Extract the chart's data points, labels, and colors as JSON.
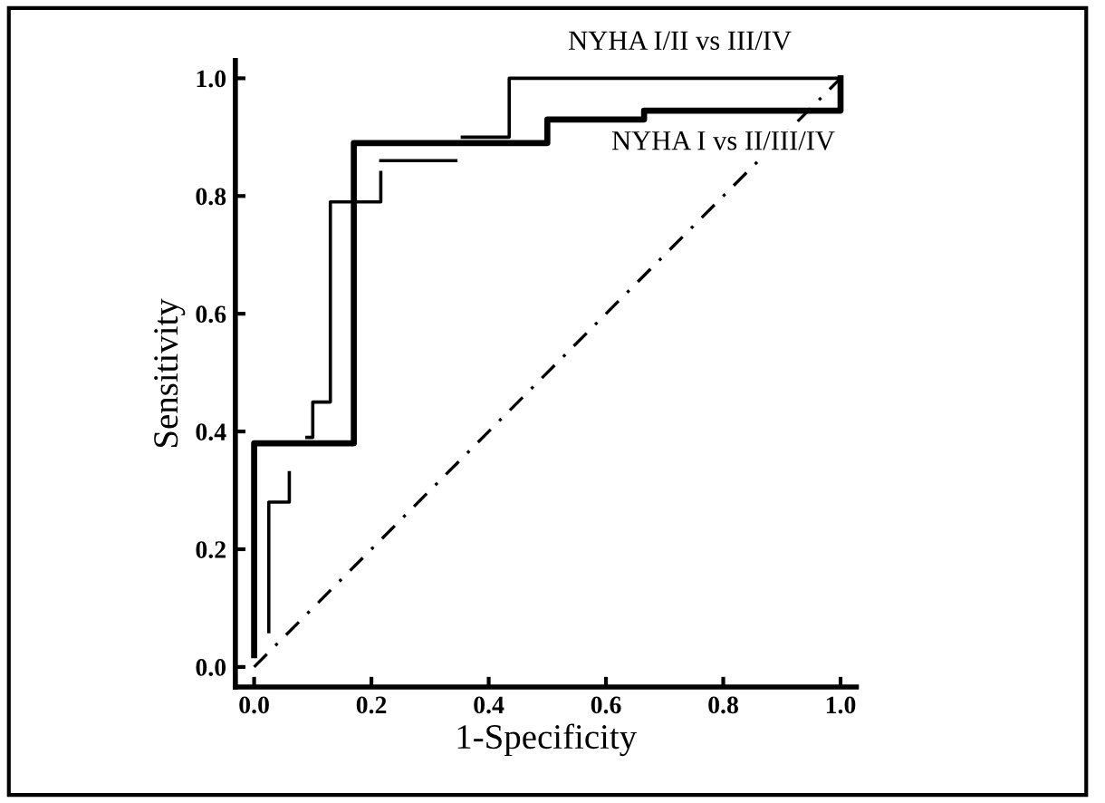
{
  "chart_data": {
    "type": "line",
    "xlabel": "1-Specificity",
    "ylabel": "Sensitivity",
    "xlim": [
      -0.032,
      1.027
    ],
    "ylim": [
      -0.034,
      1.03
    ],
    "xticks": [
      {
        "value": 0,
        "label": "0.0"
      },
      0.2,
      0.4,
      0.6,
      0.8,
      {
        "value": 1,
        "label": "1.0"
      }
    ],
    "yticks": [
      {
        "value": 0,
        "label": "0.0"
      },
      0.2,
      0.4,
      0.6,
      0.8,
      {
        "value": 1,
        "label": "1.0"
      }
    ],
    "grid": false,
    "legend": false,
    "marker": "none",
    "series": [
      {
        "name": "NYHA I/II vs III/IV",
        "color": "#000000",
        "line_style": "solid",
        "x": [
          0.025,
          0.025,
          0.06,
          0.06,
          null,
          0.09,
          0.1,
          0.1,
          0.13,
          0.13,
          0.216,
          0.216,
          null,
          0.216,
          0.344,
          null,
          0.355,
          0.435,
          0.435,
          1.0
        ],
        "values": [
          0.06,
          0.28,
          0.28,
          0.33,
          null,
          0.39,
          0.39,
          0.45,
          0.45,
          0.79,
          0.79,
          0.84,
          null,
          0.86,
          0.86,
          null,
          0.9,
          0.9,
          1.0,
          1.0
        ]
      },
      {
        "name": "NYHA I vs II/III/IV",
        "color": "#000000",
        "line_style": "solid",
        "x": [
          0.0,
          0.0,
          0.17,
          0.17,
          0.5,
          0.5,
          0.665,
          0.665,
          1.0,
          1.0
        ],
        "values": [
          0.02,
          0.38,
          0.38,
          0.89,
          0.89,
          0.93,
          0.93,
          0.945,
          0.945,
          1.0
        ]
      },
      {
        "color": "#000000",
        "line_style": "dashed",
        "x": [
          0.0,
          1.0
        ],
        "values": [
          0.0,
          1.0
        ]
      }
    ]
  }
}
